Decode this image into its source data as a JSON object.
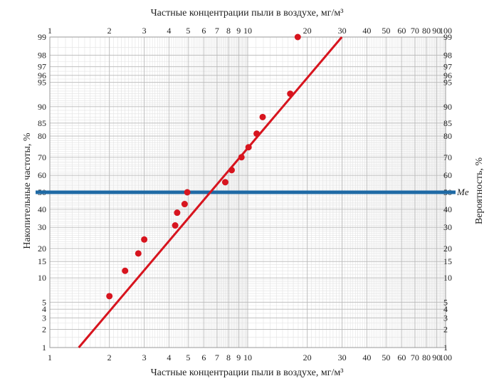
{
  "chart_data": {
    "type": "scatter",
    "title_top": "Частные концентрации пыли в воздухе, мг/м³",
    "xlabel": "Частные концентрации пыли в воздухе, мг/м³",
    "ylabel_left": "Накопительные частоты, %",
    "ylabel_right": "Вероятность, %",
    "x_scale": "log",
    "y_scale": "probability",
    "xlim": [
      1,
      100
    ],
    "ylim": [
      1,
      99
    ],
    "grid": true,
    "x_ticks": [
      {
        "value": 1,
        "label": "1"
      },
      {
        "value": 2,
        "label": "2"
      },
      {
        "value": 3,
        "label": "3"
      },
      {
        "value": 4,
        "label": "4"
      },
      {
        "value": 5,
        "label": "5"
      },
      {
        "value": 6,
        "label": "6"
      },
      {
        "value": 7,
        "label": "7"
      },
      {
        "value": 8,
        "label": "8"
      },
      {
        "value": 9,
        "label": "9"
      },
      {
        "value": 10,
        "label": "10"
      },
      {
        "value": 20,
        "label": "20"
      },
      {
        "value": 30,
        "label": "30"
      },
      {
        "value": 40,
        "label": "40"
      },
      {
        "value": 50,
        "label": "50"
      },
      {
        "value": 60,
        "label": "60"
      },
      {
        "value": 70,
        "label": "70"
      },
      {
        "value": 80,
        "label": "80"
      },
      {
        "value": 90,
        "label": "90"
      },
      {
        "value": 100,
        "label": "100"
      }
    ],
    "y_ticks": [
      {
        "value": 1,
        "label": "1"
      },
      {
        "value": 2,
        "label": "2"
      },
      {
        "value": 3,
        "label": "3"
      },
      {
        "value": 4,
        "label": "4"
      },
      {
        "value": 5,
        "label": "5"
      },
      {
        "value": 10,
        "label": "10"
      },
      {
        "value": 15,
        "label": "15"
      },
      {
        "value": 20,
        "label": "20"
      },
      {
        "value": 30,
        "label": "30"
      },
      {
        "value": 40,
        "label": "40"
      },
      {
        "value": 50,
        "label": "50"
      },
      {
        "value": 60,
        "label": "60"
      },
      {
        "value": 70,
        "label": "70"
      },
      {
        "value": 80,
        "label": "80"
      },
      {
        "value": 85,
        "label": "85"
      },
      {
        "value": 90,
        "label": "90"
      },
      {
        "value": 95,
        "label": "95"
      },
      {
        "value": 96,
        "label": "96"
      },
      {
        "value": 97,
        "label": "97"
      },
      {
        "value": 98,
        "label": "98"
      },
      {
        "value": 99,
        "label": "99"
      }
    ],
    "series": [
      {
        "type": "scatter",
        "color": "#d7141e",
        "points": [
          {
            "x": 2.0,
            "y": 6
          },
          {
            "x": 2.4,
            "y": 12
          },
          {
            "x": 2.8,
            "y": 18
          },
          {
            "x": 3.0,
            "y": 24
          },
          {
            "x": 4.3,
            "y": 31
          },
          {
            "x": 4.4,
            "y": 38
          },
          {
            "x": 4.8,
            "y": 43
          },
          {
            "x": 4.95,
            "y": 50
          },
          {
            "x": 7.7,
            "y": 56
          },
          {
            "x": 8.3,
            "y": 63
          },
          {
            "x": 9.3,
            "y": 70
          },
          {
            "x": 10.1,
            "y": 75
          },
          {
            "x": 11.1,
            "y": 81
          },
          {
            "x": 11.9,
            "y": 87
          },
          {
            "x": 16.4,
            "y": 93
          },
          {
            "x": 17.9,
            "y": 99
          }
        ]
      },
      {
        "type": "line",
        "color": "#d7141e",
        "points": [
          {
            "x": 1.4,
            "y": 1
          },
          {
            "x": 29.9,
            "y": 99
          }
        ]
      }
    ],
    "reference_line": {
      "y": 50,
      "label": "Me",
      "color": "#1f6aa5"
    }
  }
}
